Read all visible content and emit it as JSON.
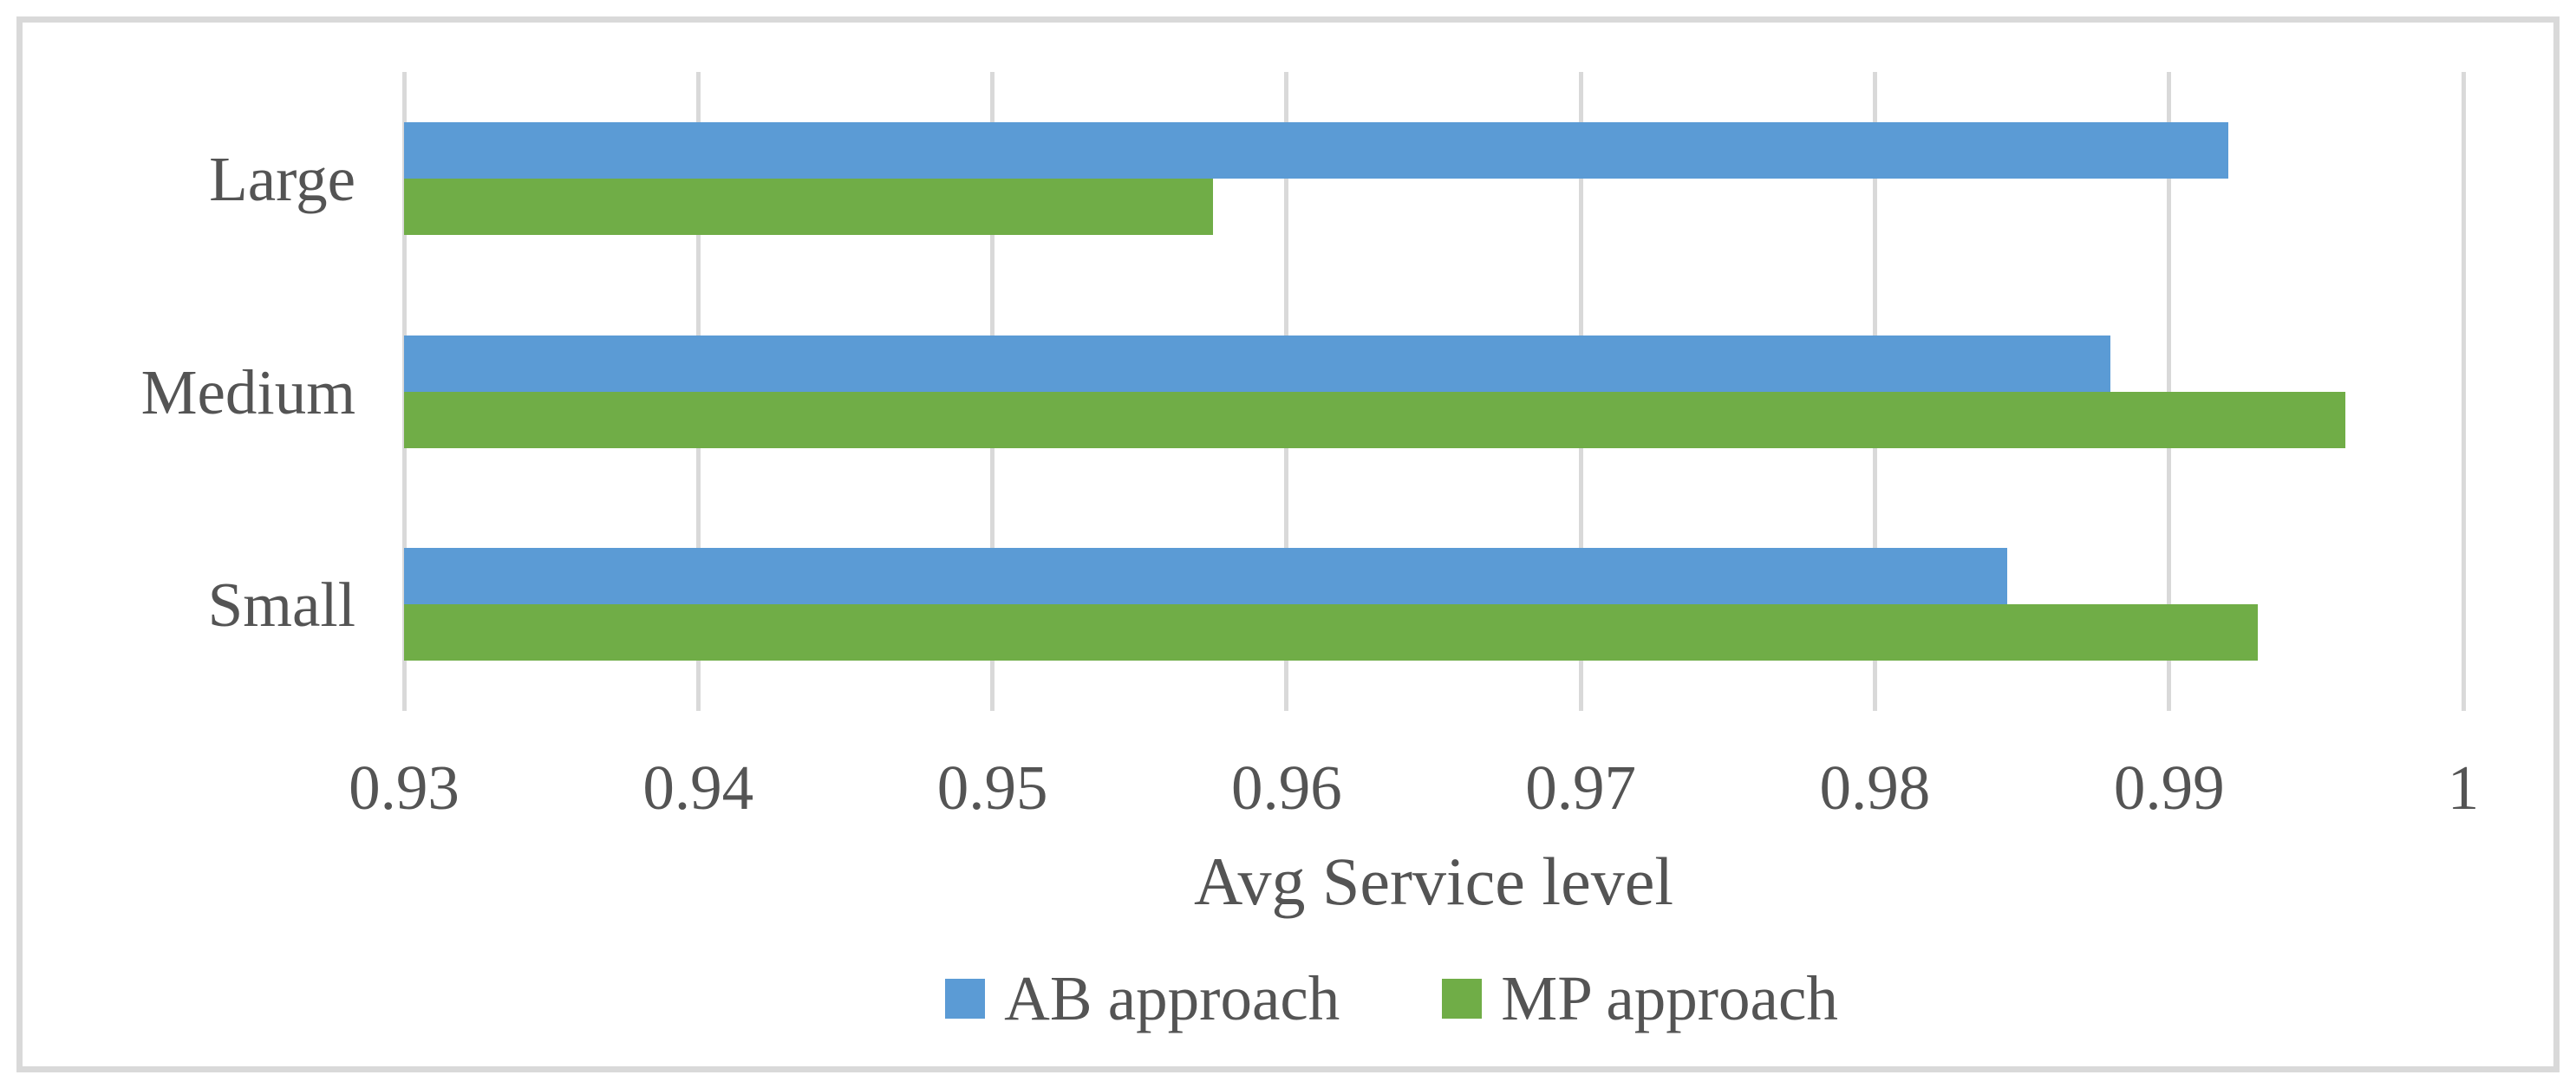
{
  "figure": {
    "background_color": "#FFFFFF",
    "frame_border_color": "#D9D9D9",
    "text_color": "#545454"
  },
  "chart_data": {
    "type": "bar",
    "orientation": "horizontal",
    "title": "",
    "categories": [
      "Large",
      "Medium",
      "Small"
    ],
    "series": [
      {
        "name": "AB approach",
        "color": "#5B9BD5",
        "values": [
          0.992,
          0.988,
          0.9845
        ]
      },
      {
        "name": "MP approach",
        "color": "#70AD47",
        "values": [
          0.9575,
          0.996,
          0.993
        ]
      }
    ],
    "xlabel": "Avg Service level",
    "ylabel": "",
    "xlim": [
      0.93,
      1.0
    ],
    "xticks": [
      0.93,
      0.94,
      0.95,
      0.96,
      0.97,
      0.98,
      0.99,
      1
    ],
    "xtick_labels": [
      "0.93",
      "0.94",
      "0.95",
      "0.96",
      "0.97",
      "0.98",
      "0.99",
      "1"
    ],
    "grid": "vertical",
    "gridline_color": "#D9D9D9",
    "legend_position": "bottom"
  },
  "legend": {
    "items": [
      {
        "label": "AB approach",
        "color": "#5B9BD5"
      },
      {
        "label": "MP approach",
        "color": "#70AD47"
      }
    ]
  }
}
